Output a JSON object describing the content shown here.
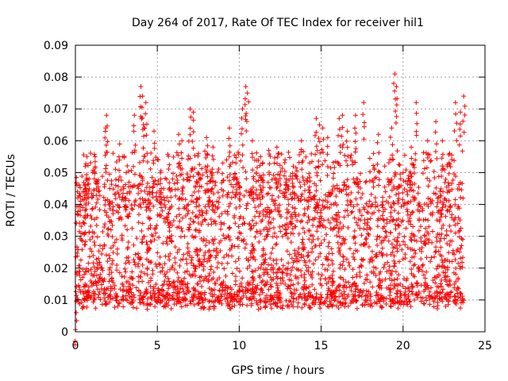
{
  "chart_data": {
    "type": "scatter",
    "title": "Day 264 of 2017, Rate Of TEC Index for receiver hil1",
    "xlabel": "GPS time / hours",
    "ylabel": "ROTI / TECUs",
    "xlim": [
      0,
      25
    ],
    "ylim": [
      0,
      0.09
    ],
    "x_ticks": [
      "0",
      "5",
      "10",
      "15",
      "20",
      "25"
    ],
    "y_ticks": [
      "0",
      "0.01",
      "0.02",
      "0.03",
      "0.04",
      "0.05",
      "0.06",
      "0.07",
      "0.08",
      "0.09"
    ],
    "grid": true,
    "legend": "none",
    "marker": "plus",
    "series_color": "#ff0000",
    "points": [
      [
        0.05,
        0.006
      ],
      [
        0.1,
        0.046
      ],
      [
        0.3,
        0.041
      ],
      [
        0.6,
        0.052
      ],
      [
        0.7,
        0.055
      ],
      [
        1.2,
        0.055
      ],
      [
        1.9,
        0.068
      ],
      [
        1.85,
        0.064
      ],
      [
        2.1,
        0.045
      ],
      [
        2.7,
        0.059
      ],
      [
        3.1,
        0.05
      ],
      [
        3.6,
        0.068
      ],
      [
        4.0,
        0.077
      ],
      [
        4.1,
        0.074
      ],
      [
        4.3,
        0.072
      ],
      [
        4.2,
        0.064
      ],
      [
        4.5,
        0.044
      ],
      [
        4.8,
        0.063
      ],
      [
        5.2,
        0.048
      ],
      [
        5.7,
        0.041
      ],
      [
        6.3,
        0.062
      ],
      [
        6.5,
        0.06
      ],
      [
        7.0,
        0.07
      ],
      [
        7.2,
        0.069
      ],
      [
        7.5,
        0.056
      ],
      [
        8.0,
        0.061
      ],
      [
        8.4,
        0.058
      ],
      [
        9.0,
        0.053
      ],
      [
        9.4,
        0.064
      ],
      [
        9.8,
        0.053
      ],
      [
        10.2,
        0.07
      ],
      [
        10.4,
        0.077
      ],
      [
        10.5,
        0.075
      ],
      [
        10.8,
        0.06
      ],
      [
        11.3,
        0.055
      ],
      [
        11.8,
        0.057
      ],
      [
        12.3,
        0.058
      ],
      [
        12.8,
        0.054
      ],
      [
        13.3,
        0.052
      ],
      [
        13.8,
        0.06
      ],
      [
        14.3,
        0.053
      ],
      [
        14.7,
        0.067
      ],
      [
        14.9,
        0.065
      ],
      [
        15.1,
        0.064
      ],
      [
        15.4,
        0.061
      ],
      [
        16.1,
        0.067
      ],
      [
        16.3,
        0.068
      ],
      [
        16.6,
        0.063
      ],
      [
        17.1,
        0.068
      ],
      [
        17.6,
        0.072
      ],
      [
        18.2,
        0.056
      ],
      [
        18.5,
        0.062
      ],
      [
        19.3,
        0.064
      ],
      [
        19.5,
        0.081
      ],
      [
        19.6,
        0.077
      ],
      [
        20.0,
        0.05
      ],
      [
        20.5,
        0.058
      ],
      [
        20.8,
        0.072
      ],
      [
        21.5,
        0.06
      ],
      [
        22.0,
        0.066
      ],
      [
        22.4,
        0.06
      ],
      [
        22.8,
        0.053
      ],
      [
        23.2,
        0.072
      ],
      [
        23.5,
        0.069
      ],
      [
        23.7,
        0.074
      ]
    ],
    "baseline_band": [
      0.005,
      0.045
    ]
  }
}
